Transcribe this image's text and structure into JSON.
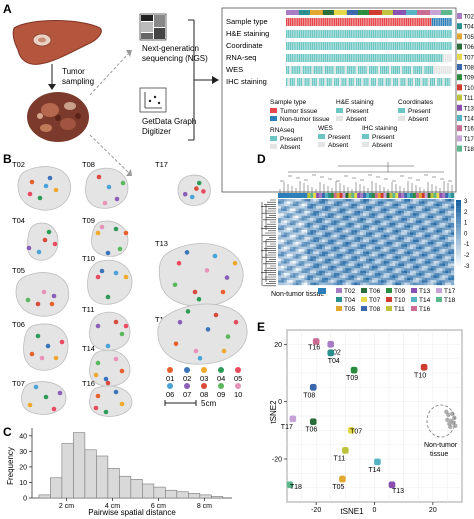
{
  "panel_letters": [
    "A",
    "B",
    "C",
    "D",
    "E"
  ],
  "panelA": {
    "tumor_sampling": [
      "Tumor",
      "sampling"
    ],
    "ngs_label": [
      "Next-generation",
      "sequencing (NGS)"
    ],
    "digitizer_label": [
      "GetData Graph",
      "Digitizer"
    ],
    "row_labels": [
      "Sample type",
      "H&E staining",
      "Coordinate",
      "RNA-seq",
      "WES",
      "IHC staining"
    ],
    "sample_ids": [
      "T02",
      "T04",
      "T05",
      "T06",
      "T07",
      "T08",
      "T09",
      "T10",
      "T11",
      "T13",
      "T14",
      "T16",
      "T17",
      "T18"
    ],
    "sample_colors": [
      "#a77cc4",
      "#2a8f8f",
      "#e2a72e",
      "#2a6d3a",
      "#e6d94a",
      "#3a67ad",
      "#2b8c3e",
      "#cf3b2e",
      "#bfc23b",
      "#8a4fb0",
      "#56b3c4",
      "#c96b93",
      "#c6a2d6",
      "#5cb88a"
    ],
    "legend": {
      "sample_type_title": "Sample type",
      "sample_type_items": [
        "Tumor tissue",
        "Non-tumor tissue"
      ],
      "he_title": "H&E staining",
      "coord_title": "Coordinates",
      "rnaseq_title": "RNAseq",
      "wes_title": "WES",
      "ihc_title": "IHC staining",
      "present": "Present",
      "absent": "Absent"
    },
    "colors": {
      "tumor": "#e5474a",
      "non_tumor": "#2c7fb8",
      "present": "#6cc7c4",
      "absent": "#e4e4e4"
    }
  },
  "panelB": {
    "sample_labels": [
      "T02",
      "T04",
      "T05",
      "T06",
      "T07",
      "T08",
      "T09",
      "T10",
      "T11",
      "T14",
      "T16",
      "T17",
      "T13",
      "T18"
    ],
    "dot_legend_labels": [
      "01",
      "02",
      "03",
      "04",
      "05",
      "06",
      "07",
      "08",
      "09",
      "10"
    ],
    "dot_colors": [
      "#e8612c",
      "#3b74b8",
      "#f0a92c",
      "#2e9c57",
      "#e84a5f",
      "#4aa3d9",
      "#8b5fb7",
      "#d94a3c",
      "#5cb85c",
      "#e892b8"
    ],
    "scale_bar": "5cm"
  },
  "chart_data": [
    {
      "type": "bar",
      "title": "",
      "xlabel": "Pairwise spatial distance",
      "ylabel": "Frequency",
      "x_ticks": [
        "2 cm",
        "4 cm",
        "6 cm",
        "8 cm"
      ],
      "y_ticks": [
        "0",
        "10",
        "20",
        "30",
        "40"
      ],
      "ylim": [
        0,
        45
      ],
      "bin_edges": [
        0.8,
        1.3,
        1.8,
        2.3,
        2.8,
        3.3,
        3.8,
        4.3,
        4.8,
        5.3,
        5.8,
        6.3,
        6.8,
        7.3,
        7.8,
        8.3,
        8.8
      ],
      "values": [
        2,
        13,
        35,
        42,
        31,
        27,
        19,
        14,
        12,
        9,
        7,
        5,
        4,
        3,
        2,
        1
      ]
    },
    {
      "type": "heatmap",
      "title": "",
      "colorbar_ticks": [
        "3",
        "2",
        "1",
        "0",
        "-1",
        "-2",
        "-3"
      ],
      "legend_label": "Non-tumor tissue",
      "legend_items": [
        "T02",
        "T06",
        "T09",
        "T13",
        "T17",
        "T04",
        "T07",
        "T10",
        "T14",
        "T18",
        "T05",
        "T08",
        "T11",
        "T16"
      ]
    },
    {
      "type": "scatter",
      "title": "",
      "xlabel": "tSNE1",
      "ylabel": "tSNE2",
      "x_ticks": [
        "-20",
        "0",
        "20"
      ],
      "y_ticks": [
        "20",
        "0",
        "-20"
      ],
      "xlim": [
        -30,
        30
      ],
      "ylim": [
        -35,
        25
      ],
      "annotation": [
        "Non-tumor",
        "tissue"
      ],
      "series": [
        {
          "name": "T16",
          "color": "#c96b93",
          "x": -20,
          "y": 21
        },
        {
          "name": "T02",
          "color": "#a77cc4",
          "x": -15,
          "y": 20
        },
        {
          "name": "T04",
          "color": "#2a8f8f",
          "x": -15,
          "y": 17
        },
        {
          "name": "T09",
          "color": "#2b8c3e",
          "x": -7,
          "y": 11
        },
        {
          "name": "T10",
          "color": "#cf3b2e",
          "x": 17,
          "y": 12
        },
        {
          "name": "T08",
          "color": "#3a67ad",
          "x": -21,
          "y": 5
        },
        {
          "name": "T17",
          "color": "#c6a2d6",
          "x": -28,
          "y": -6
        },
        {
          "name": "T06",
          "color": "#2a6d3a",
          "x": -21,
          "y": -7
        },
        {
          "name": "T07",
          "color": "#e6d94a",
          "x": -8,
          "y": -10
        },
        {
          "name": "T11",
          "color": "#bfc23b",
          "x": -10,
          "y": -17
        },
        {
          "name": "T14",
          "color": "#56b3c4",
          "x": 1,
          "y": -21
        },
        {
          "name": "T05",
          "color": "#e2a72e",
          "x": -11,
          "y": -27
        },
        {
          "name": "T13",
          "color": "#8a4fb0",
          "x": 6,
          "y": -29
        },
        {
          "name": "T18",
          "color": "#5cb88a",
          "x": -29,
          "y": -29
        },
        {
          "name": "Non-tumor",
          "color": "#9a9a9a",
          "x": 26,
          "y": -6
        }
      ]
    }
  ]
}
